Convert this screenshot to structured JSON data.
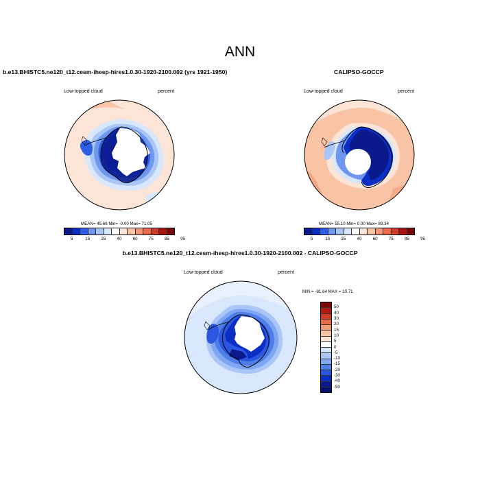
{
  "main_title": "ANN",
  "panels": [
    {
      "title": "b.e13.BHISTC5.ne120_t12.cesm-ihesp-hires1.0.30-1920-2100.002 (yrs 1921-1950)",
      "left_label": "Low-topped cloud",
      "right_label": "percent",
      "stats": "MEAN=  45.66  Min=  -0.00  Max=  71.05"
    },
    {
      "title": "CALIPSO-GOCCP",
      "left_label": "Low-topped cloud",
      "right_label": "percent",
      "stats": "MEAN=  55.10  Min=   0.00  Max=  89.34"
    },
    {
      "title": "b.e13.BHISTC5.ne120_t12.cesm-ihesp-hires1.0.30-1920-2100.002 - CALIPSO-GOCCP",
      "left_label": "Low-topped cloud",
      "right_label": "percent",
      "stats": "MIN = -81.64 MAX =  10.71"
    }
  ],
  "colorbar_abs": {
    "labels": [
      "5",
      "15",
      "25",
      "40",
      "60",
      "75",
      "85",
      "95"
    ],
    "colors": [
      "#0a1a8c",
      "#0b2fc4",
      "#2f5fe6",
      "#6f97f0",
      "#a9c6f6",
      "#d8e7fb",
      "#ffffff",
      "#fce4d6",
      "#f9c3a6",
      "#f59a76",
      "#eb6a4a",
      "#d23b25",
      "#a81612",
      "#7a0707"
    ]
  },
  "colorbar_diff": {
    "labels": [
      "50",
      "40",
      "30",
      "20",
      "15",
      "10",
      "5",
      "0",
      "-5",
      "-10",
      "-15",
      "-20",
      "-30",
      "-40",
      "-50"
    ],
    "colors": [
      "#7a0707",
      "#b01a10",
      "#d23b25",
      "#eb6a4a",
      "#f59a76",
      "#f9c3a6",
      "#fce4d6",
      "#ffffff",
      "#d8e7fb",
      "#a9c6f6",
      "#7fa6f2",
      "#4f7ee9",
      "#2a56e0",
      "#0b2fc4",
      "#0a1a8c",
      "#061270"
    ]
  }
}
